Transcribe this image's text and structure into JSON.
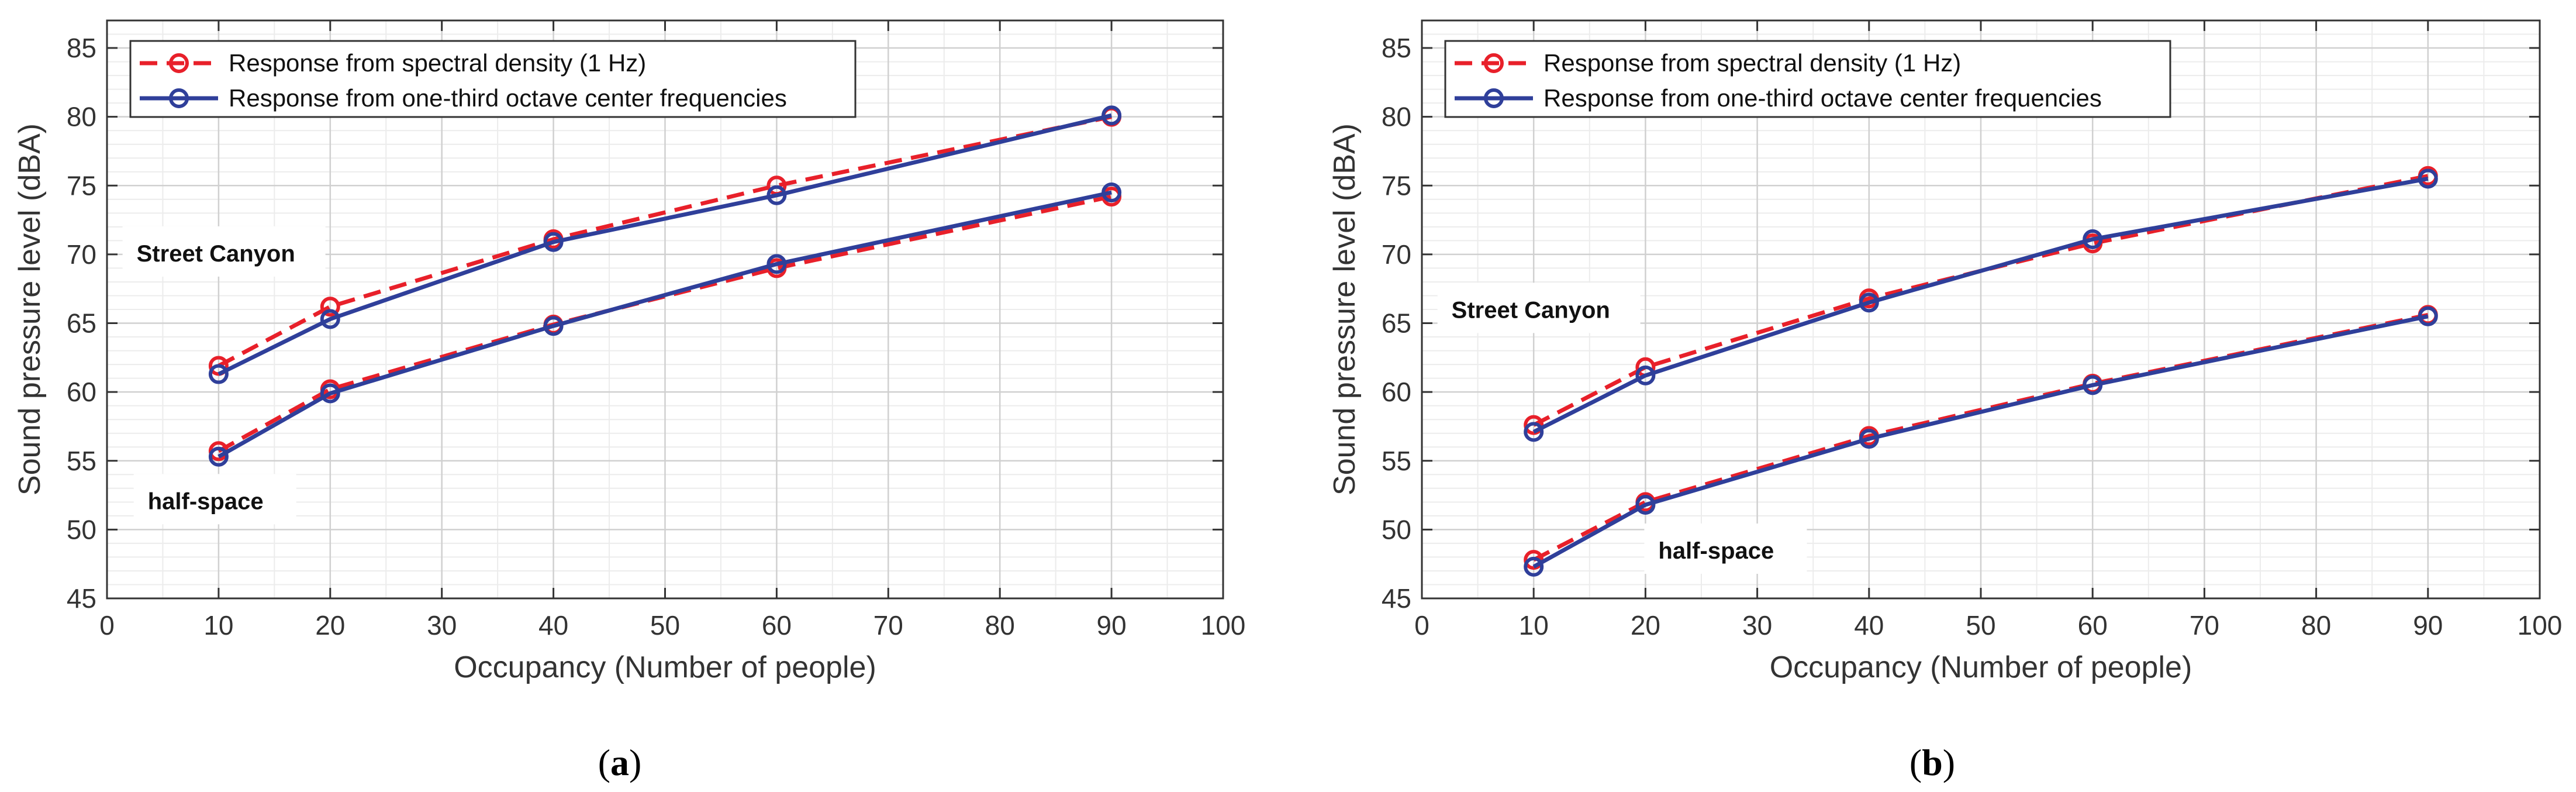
{
  "chart_data": [
    {
      "type": "line",
      "panel": "a",
      "caption_open": "(",
      "caption_letter": "a",
      "caption_close": ")",
      "xlabel": "Occupancy (Number of people)",
      "ylabel": "Sound pressure level (dBA)",
      "xlim": [
        0,
        100
      ],
      "ylim": [
        45,
        87
      ],
      "xticks": [
        0,
        10,
        20,
        30,
        40,
        50,
        60,
        70,
        80,
        90,
        100
      ],
      "yticks": [
        45,
        50,
        55,
        60,
        65,
        70,
        75,
        80,
        85
      ],
      "grid": true,
      "legend_position": "top-left",
      "x": [
        10,
        20,
        40,
        60,
        90
      ],
      "series": [
        {
          "key": "sc-spectral",
          "name": "Response from spectral density (1 Hz)",
          "legend": true,
          "style": "dashed",
          "color": "#e8202a",
          "values": [
            61.9,
            66.2,
            71.1,
            75.0,
            80.0
          ]
        },
        {
          "key": "sc-octave",
          "name": "Response from one-third octave center frequencies",
          "legend": true,
          "style": "solid",
          "color": "#2f3f9a",
          "values": [
            61.3,
            65.3,
            70.9,
            74.3,
            80.1
          ]
        },
        {
          "key": "hs-spectral",
          "name": "Response from spectral density (1 Hz)",
          "legend": false,
          "style": "dashed",
          "color": "#e8202a",
          "values": [
            55.7,
            60.2,
            64.9,
            69.0,
            74.2
          ]
        },
        {
          "key": "hs-octave",
          "name": "Response from one-third octave center frequencies",
          "legend": false,
          "style": "solid",
          "color": "#2f3f9a",
          "values": [
            55.3,
            59.9,
            64.8,
            69.3,
            74.5
          ]
        }
      ],
      "annotations": [
        {
          "key": "street-canyon",
          "text": "Street Canyon",
          "x": 1.5,
          "y": 70.0
        },
        {
          "key": "half-space",
          "text": "half-space",
          "x": 2.5,
          "y": 52.0
        }
      ]
    },
    {
      "type": "line",
      "panel": "b",
      "caption_open": "(",
      "caption_letter": "b",
      "caption_close": ")",
      "xlabel": "Occupancy (Number of people)",
      "ylabel": "Sound pressure level (dBA)",
      "xlim": [
        0,
        100
      ],
      "ylim": [
        45,
        87
      ],
      "xticks": [
        0,
        10,
        20,
        30,
        40,
        50,
        60,
        70,
        80,
        90,
        100
      ],
      "yticks": [
        45,
        50,
        55,
        60,
        65,
        70,
        75,
        80,
        85
      ],
      "grid": true,
      "legend_position": "top-left",
      "x": [
        10,
        20,
        40,
        60,
        90
      ],
      "series": [
        {
          "key": "sc-spectral",
          "name": "Response from spectral density (1 Hz)",
          "legend": true,
          "style": "dashed",
          "color": "#e8202a",
          "values": [
            57.6,
            61.8,
            66.8,
            70.8,
            75.7
          ]
        },
        {
          "key": "sc-octave",
          "name": "Response from one-third octave center frequencies",
          "legend": true,
          "style": "solid",
          "color": "#2f3f9a",
          "values": [
            57.1,
            61.2,
            66.5,
            71.1,
            75.5
          ]
        },
        {
          "key": "hs-spectral",
          "name": "Response from spectral density (1 Hz)",
          "legend": false,
          "style": "dashed",
          "color": "#e8202a",
          "values": [
            47.8,
            52.0,
            56.8,
            60.6,
            65.6
          ]
        },
        {
          "key": "hs-octave",
          "name": "Response from one-third octave center frequencies",
          "legend": false,
          "style": "solid",
          "color": "#2f3f9a",
          "values": [
            47.3,
            51.8,
            56.6,
            60.5,
            65.5
          ]
        }
      ],
      "annotations": [
        {
          "key": "street-canyon",
          "text": "Street Canyon",
          "x": 1.5,
          "y": 65.9
        },
        {
          "key": "half-space",
          "text": "half-space",
          "x": 20.0,
          "y": 48.4
        }
      ]
    }
  ]
}
